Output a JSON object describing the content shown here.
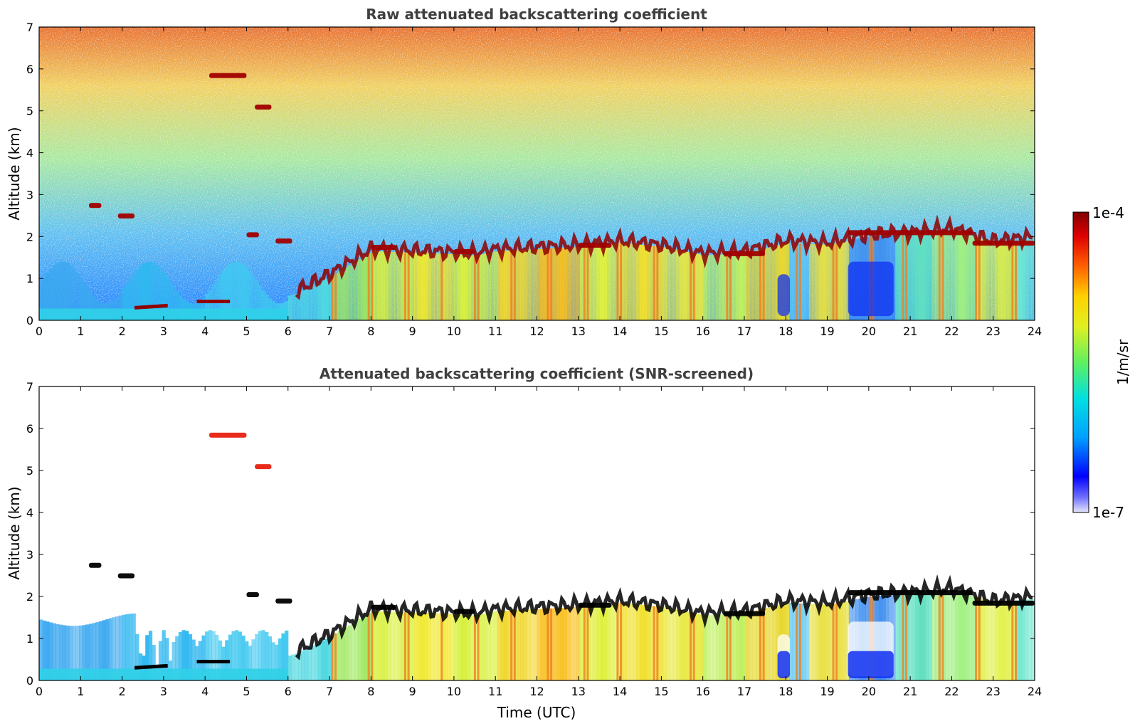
{
  "chart_data": [
    {
      "type": "heatmap",
      "title": "Raw attenuated backscattering coefficient",
      "xlabel": "",
      "ylabel": "Altitude (km)",
      "xlim": [
        0,
        24
      ],
      "ylim": [
        0,
        7
      ],
      "xticks": [
        "0",
        "1",
        "2",
        "3",
        "4",
        "5",
        "6",
        "7",
        "8",
        "9",
        "10",
        "11",
        "12",
        "13",
        "14",
        "15",
        "16",
        "17",
        "18",
        "19",
        "20",
        "21",
        "22",
        "23",
        "24"
      ],
      "yticks": [
        "0",
        "1",
        "2",
        "3",
        "4",
        "5",
        "6",
        "7"
      ],
      "features": {
        "cloud_layers": [
          {
            "t_start": 4.1,
            "t_end": 5.0,
            "alt_km": 5.85
          },
          {
            "t_start": 5.2,
            "t_end": 5.6,
            "alt_km": 5.1
          },
          {
            "t_start": 1.2,
            "t_end": 1.5,
            "alt_km": 2.75
          },
          {
            "t_start": 1.9,
            "t_end": 2.3,
            "alt_km": 2.5
          },
          {
            "t_start": 5.0,
            "t_end": 5.3,
            "alt_km": 2.05
          },
          {
            "t_start": 5.7,
            "t_end": 6.1,
            "alt_km": 1.9
          },
          {
            "t_start": 8.0,
            "t_end": 8.6,
            "alt_km": 1.75
          },
          {
            "t_start": 10.0,
            "t_end": 10.5,
            "alt_km": 1.65
          },
          {
            "t_start": 13.0,
            "t_end": 13.8,
            "alt_km": 1.8
          },
          {
            "t_start": 16.5,
            "t_end": 17.5,
            "alt_km": 1.6
          },
          {
            "t_start": 19.5,
            "t_end": 22.5,
            "alt_km": 2.1
          },
          {
            "t_start": 22.5,
            "t_end": 24.0,
            "alt_km": 1.85
          }
        ]
      }
    },
    {
      "type": "heatmap",
      "title": "Attenuated backscattering coefficient (SNR-screened)",
      "xlabel": "Time (UTC)",
      "ylabel": "Altitude (km)",
      "xlim": [
        0,
        24
      ],
      "ylim": [
        0,
        7
      ],
      "xticks": [
        "0",
        "1",
        "2",
        "3",
        "4",
        "5",
        "6",
        "7",
        "8",
        "9",
        "10",
        "11",
        "12",
        "13",
        "14",
        "15",
        "16",
        "17",
        "18",
        "19",
        "20",
        "21",
        "22",
        "23",
        "24"
      ],
      "yticks": [
        "0",
        "1",
        "2",
        "3",
        "4",
        "5",
        "6",
        "7"
      ]
    }
  ],
  "colorbar": {
    "label": "1/m/sr",
    "max_label": "1e-4",
    "min_label": "1e-7",
    "scale": "log",
    "colormap": [
      "#e6e6fa",
      "#0000ff",
      "#00a0ff",
      "#00e0e0",
      "#60f060",
      "#e0f020",
      "#ffd000",
      "#ff6000",
      "#e00000",
      "#800000"
    ]
  }
}
